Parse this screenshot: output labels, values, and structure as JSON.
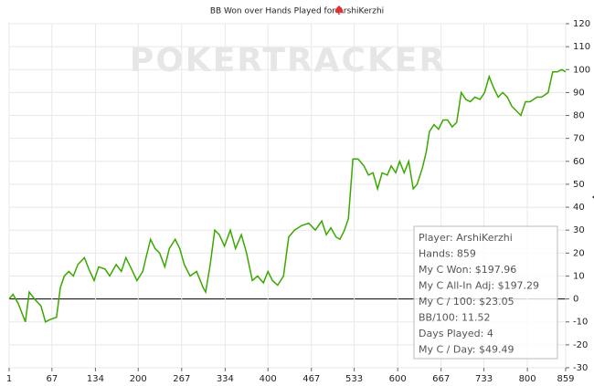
{
  "chart_data": {
    "type": "line",
    "title": "BB Won over Hands Played for ArshiKerzhi",
    "watermark": "POKERTRACKER",
    "x": [
      1,
      7,
      15,
      26,
      32,
      40,
      50,
      57,
      64,
      74,
      80,
      86,
      93,
      100,
      107,
      117,
      124,
      132,
      139,
      149,
      156,
      166,
      174,
      181,
      188,
      198,
      207,
      212,
      219,
      226,
      233,
      241,
      248,
      257,
      264,
      271,
      280,
      290,
      300,
      304,
      311,
      318,
      325,
      333,
      342,
      350,
      359,
      367,
      376,
      384,
      393,
      400,
      407,
      415,
      424,
      432,
      441,
      452,
      463,
      473,
      483,
      490,
      497,
      505,
      511,
      518,
      524,
      531,
      539,
      548,
      555,
      562,
      569,
      576,
      584,
      590,
      597,
      603,
      610,
      617,
      624,
      630,
      638,
      644,
      649,
      656,
      663,
      670,
      677,
      684,
      691,
      698,
      705,
      712,
      719,
      727,
      734,
      741,
      748,
      755,
      762,
      769,
      776,
      783,
      790,
      797,
      804,
      815,
      822,
      832,
      839,
      846,
      853,
      859
    ],
    "series": [
      {
        "color": "#3aa800",
        "values": [
          0,
          2,
          -2,
          -10,
          3,
          0,
          -3,
          -10,
          -9,
          -8,
          5,
          10,
          12,
          10,
          15,
          18,
          13,
          8,
          14,
          13,
          10,
          15,
          12,
          18,
          14,
          8,
          12,
          18,
          26,
          22,
          20,
          14,
          22,
          26,
          22,
          15,
          10,
          12,
          5,
          3,
          15,
          30,
          28,
          23,
          30,
          22,
          28,
          20,
          8,
          10,
          7,
          12,
          8,
          6,
          10,
          27,
          30,
          32,
          33,
          30,
          34,
          28,
          31,
          27,
          26,
          30,
          35,
          61,
          61,
          58,
          54,
          55,
          48,
          55,
          54,
          58,
          55,
          60,
          55,
          60,
          48,
          50,
          57,
          64,
          73,
          76,
          74,
          78,
          78,
          75,
          77,
          90,
          87,
          86,
          88,
          87,
          90,
          97,
          92,
          88,
          90,
          88,
          84,
          82,
          80,
          86,
          86,
          88,
          88,
          90,
          99,
          99,
          100,
          99
        ]
      }
    ],
    "xlim": [
      1,
      859
    ],
    "xticks": [
      1,
      67,
      134,
      200,
      267,
      334,
      400,
      467,
      533,
      600,
      667,
      733,
      800,
      859
    ],
    "ylim": [
      -30,
      120
    ],
    "yticks": [
      -30,
      -20,
      -10,
      0,
      10,
      20,
      30,
      40,
      50,
      60,
      70,
      80,
      90,
      100,
      110,
      120
    ],
    "grid": true,
    "info_box": [
      "Player: ArshiKerzhi",
      "Hands: 859",
      "My C Won: $197.96",
      "My C All-In Adj: $197.29",
      "My C / 100: $23.05",
      "BB/100: 11.52",
      "Days Played: 4",
      "My C / Day: $49.49"
    ]
  }
}
